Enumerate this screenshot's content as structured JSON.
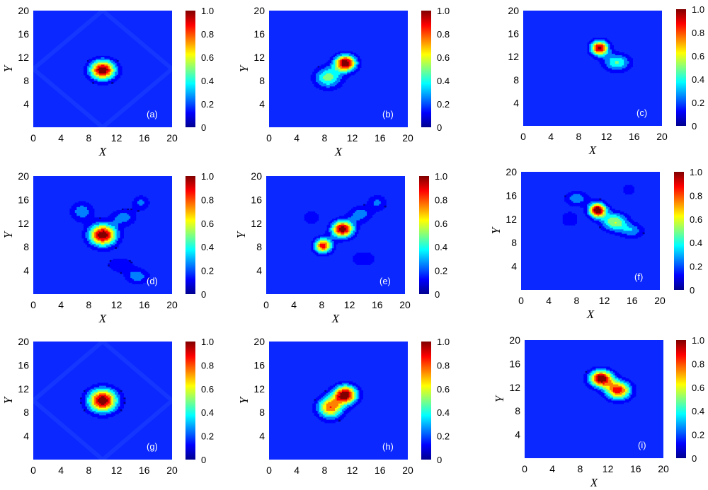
{
  "figure": {
    "colormap": [
      "#00008f",
      "#0000ff",
      "#0080ff",
      "#00ffff",
      "#80ff80",
      "#ffff00",
      "#ff8000",
      "#ff0000",
      "#800000"
    ],
    "background_color": "#0a28ff"
  },
  "chart_data": [
    {
      "type": "heatmap",
      "panel_label": "(a)",
      "xlabel": "X",
      "ylabel": "Y",
      "xlim": [
        0,
        20
      ],
      "ylim": [
        0,
        20
      ],
      "xticks": [
        "0",
        "4",
        "8",
        "12",
        "16",
        "20"
      ],
      "yticks": [
        "4",
        "8",
        "12",
        "16",
        "20"
      ],
      "colorbar": {
        "ticks": [
          "0",
          "0.2",
          "0.4",
          "0.6",
          "0.8",
          "1.0"
        ],
        "range": [
          0,
          1
        ]
      },
      "pattern": "diamond",
      "peaks": [
        {
          "x": 10,
          "y": 9.8,
          "amp": 1.0,
          "sx": 1.3,
          "sy": 1.2
        }
      ]
    },
    {
      "type": "heatmap",
      "panel_label": "(b)",
      "xlabel": "X",
      "ylabel": "Y",
      "xlim": [
        0,
        20
      ],
      "ylim": [
        0,
        20
      ],
      "xticks": [
        "0",
        "4",
        "8",
        "12",
        "16",
        "20"
      ],
      "yticks": [
        "4",
        "8",
        "12",
        "16",
        "20"
      ],
      "colorbar": {
        "ticks": [
          "0",
          "0.2",
          "0.4",
          "0.6",
          "0.8",
          "1.0"
        ],
        "range": [
          0,
          1
        ]
      },
      "peaks": [
        {
          "x": 11,
          "y": 11,
          "amp": 1.0,
          "sx": 1.1,
          "sy": 1.0
        },
        {
          "x": 8.5,
          "y": 8.5,
          "amp": 0.5,
          "sx": 1.4,
          "sy": 1.3
        }
      ]
    },
    {
      "type": "heatmap",
      "panel_label": "(c)",
      "xlabel": "X",
      "ylabel": "",
      "xlim": [
        0,
        20
      ],
      "ylim": [
        0,
        20
      ],
      "xticks": [
        "0",
        "4",
        "8",
        "12",
        "16",
        "20"
      ],
      "yticks": [
        "4",
        "8",
        "12",
        "16",
        "20"
      ],
      "colorbar": {
        "ticks": [
          "0",
          "0.2",
          "0.4",
          "0.6",
          "0.8",
          "1.0"
        ],
        "range": [
          0,
          1
        ]
      },
      "peaks": [
        {
          "x": 11,
          "y": 13.5,
          "amp": 0.95,
          "sx": 0.9,
          "sy": 0.9
        },
        {
          "x": 13.5,
          "y": 11,
          "amp": 0.45,
          "sx": 1.4,
          "sy": 1.1
        }
      ]
    },
    {
      "type": "heatmap",
      "panel_label": "(d)",
      "xlabel": "X",
      "ylabel": "Y",
      "xlim": [
        0,
        20
      ],
      "ylim": [
        0,
        20
      ],
      "xticks": [
        "0",
        "4",
        "8",
        "12",
        "16",
        "20"
      ],
      "yticks": [
        "4",
        "8",
        "12",
        "16",
        "20"
      ],
      "colorbar": {
        "ticks": [
          "0",
          "0.2",
          "0.4",
          "0.6",
          "0.8",
          "1.0"
        ],
        "range": [
          0,
          1
        ]
      },
      "peaks": [
        {
          "x": 10,
          "y": 10,
          "amp": 1.0,
          "sx": 1.4,
          "sy": 1.3
        },
        {
          "x": 7,
          "y": 14,
          "amp": 0.3,
          "sx": 1.2,
          "sy": 1.2
        },
        {
          "x": 13,
          "y": 13,
          "amp": 0.28,
          "sx": 1.3,
          "sy": 1.0
        },
        {
          "x": 15.5,
          "y": 15.5,
          "amp": 0.25,
          "sx": 0.9,
          "sy": 0.9
        },
        {
          "x": 15,
          "y": 3,
          "amp": 0.3,
          "sx": 1.2,
          "sy": 0.9
        },
        {
          "x": 12.5,
          "y": 5,
          "amp": 0.2,
          "sx": 1.5,
          "sy": 1.0
        }
      ]
    },
    {
      "type": "heatmap",
      "panel_label": "(e)",
      "xlabel": "X",
      "ylabel": "Y",
      "xlim": [
        0,
        20
      ],
      "ylim": [
        0,
        20
      ],
      "xticks": [
        "0",
        "4",
        "8",
        "12",
        "16",
        "20"
      ],
      "yticks": [
        "4",
        "8",
        "12",
        "16",
        "20"
      ],
      "colorbar": {
        "ticks": [
          "0",
          "0.2",
          "0.4",
          "0.6",
          "0.8",
          "1.0"
        ],
        "range": [
          0,
          1
        ]
      },
      "peaks": [
        {
          "x": 11,
          "y": 11,
          "amp": 1.0,
          "sx": 1.1,
          "sy": 1.0
        },
        {
          "x": 8.2,
          "y": 8.2,
          "amp": 0.85,
          "sx": 0.9,
          "sy": 0.9
        },
        {
          "x": 13.5,
          "y": 13.5,
          "amp": 0.3,
          "sx": 1.2,
          "sy": 1.0
        },
        {
          "x": 16,
          "y": 15.5,
          "amp": 0.25,
          "sx": 1.0,
          "sy": 1.0
        },
        {
          "x": 6.5,
          "y": 13,
          "amp": 0.2,
          "sx": 0.9,
          "sy": 0.9
        },
        {
          "x": 14,
          "y": 6,
          "amp": 0.2,
          "sx": 1.4,
          "sy": 1.0
        }
      ]
    },
    {
      "type": "heatmap",
      "panel_label": "(f)",
      "xlabel": "X",
      "ylabel": "Y",
      "xlim": [
        0,
        20
      ],
      "ylim": [
        0,
        20
      ],
      "xticks": [
        "0",
        "4",
        "8",
        "12",
        "16",
        "20"
      ],
      "yticks": [
        "4",
        "8",
        "12",
        "16",
        "20"
      ],
      "colorbar": {
        "ticks": [
          "0",
          "0.2",
          "0.4",
          "0.6",
          "0.8",
          "1.0"
        ],
        "range": [
          0,
          1
        ]
      },
      "peaks": [
        {
          "x": 11,
          "y": 13.5,
          "amp": 1.0,
          "sx": 0.9,
          "sy": 0.9
        },
        {
          "x": 13.5,
          "y": 11.5,
          "amp": 0.55,
          "sx": 1.3,
          "sy": 1.1
        },
        {
          "x": 8,
          "y": 15.5,
          "amp": 0.3,
          "sx": 1.2,
          "sy": 0.9
        },
        {
          "x": 16,
          "y": 10,
          "amp": 0.3,
          "sx": 1.2,
          "sy": 0.9
        },
        {
          "x": 7,
          "y": 12,
          "amp": 0.2,
          "sx": 1.0,
          "sy": 1.0
        },
        {
          "x": 15.5,
          "y": 17,
          "amp": 0.2,
          "sx": 0.8,
          "sy": 0.8
        }
      ]
    },
    {
      "type": "heatmap",
      "panel_label": "(g)",
      "xlabel": "",
      "ylabel": "Y",
      "xlim": [
        0,
        20
      ],
      "ylim": [
        0,
        20
      ],
      "xticks": [
        "0",
        "4",
        "8",
        "12",
        "16",
        "20"
      ],
      "yticks": [
        "4",
        "8",
        "12",
        "16",
        "20"
      ],
      "colorbar": {
        "ticks": [
          "0",
          "0.2",
          "0.4",
          "0.6",
          "0.8",
          "1.0"
        ],
        "range": [
          0,
          1
        ]
      },
      "pattern": "diamond",
      "peaks": [
        {
          "x": 10,
          "y": 10,
          "amp": 1.0,
          "sx": 1.5,
          "sy": 1.4
        }
      ]
    },
    {
      "type": "heatmap",
      "panel_label": "(h)",
      "xlabel": "",
      "ylabel": "Y",
      "xlim": [
        0,
        20
      ],
      "ylim": [
        0,
        20
      ],
      "xticks": [
        "0",
        "4",
        "8",
        "12",
        "16",
        "20"
      ],
      "yticks": [
        "4",
        "8",
        "12",
        "16",
        "20"
      ],
      "colorbar": {
        "ticks": [
          "0",
          "0.2",
          "0.4",
          "0.6",
          "0.8",
          "1.0"
        ],
        "range": [
          0,
          1
        ]
      },
      "peaks": [
        {
          "x": 11,
          "y": 11,
          "amp": 1.0,
          "sx": 1.2,
          "sy": 1.1
        },
        {
          "x": 8.8,
          "y": 8.8,
          "amp": 0.75,
          "sx": 1.3,
          "sy": 1.3
        }
      ]
    },
    {
      "type": "heatmap",
      "panel_label": "(i)",
      "xlabel": "X",
      "ylabel": "Y",
      "xlim": [
        0,
        20
      ],
      "ylim": [
        0,
        20
      ],
      "xticks": [
        "0",
        "4",
        "8",
        "12",
        "16",
        "20"
      ],
      "yticks": [
        "4",
        "8",
        "12",
        "16",
        "20"
      ],
      "colorbar": {
        "ticks": [
          "0",
          "0.2",
          "0.4",
          "0.6",
          "0.8",
          "1.0"
        ],
        "range": [
          0,
          1
        ]
      },
      "peaks": [
        {
          "x": 11,
          "y": 13.5,
          "amp": 1.0,
          "sx": 1.2,
          "sy": 1.0
        },
        {
          "x": 13.5,
          "y": 11.5,
          "amp": 0.85,
          "sx": 1.3,
          "sy": 1.1
        }
      ]
    }
  ]
}
